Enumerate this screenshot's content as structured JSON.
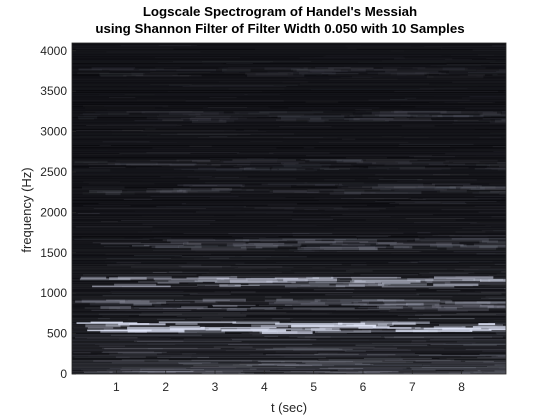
{
  "chart_data": {
    "type": "heatmap",
    "title": [
      "Logscale Spectrogram of Handel's Messiah",
      "using Shannon Filter of Filter Width 0.050 with 10 Samples"
    ],
    "xlabel": "t (sec)",
    "ylabel": "frequency (Hz)",
    "xlim": [
      0.1,
      8.9
    ],
    "ylim": [
      0,
      4096
    ],
    "xticks": [
      1,
      2,
      3,
      4,
      5,
      6,
      7,
      8
    ],
    "yticks": [
      0,
      500,
      1000,
      1500,
      2000,
      2500,
      3000,
      3500,
      4000
    ],
    "colormap": "bone",
    "background_color": "#0b0b0f",
    "bright_bands_hz": [
      {
        "frequency": 590,
        "intensity": 0.85
      },
      {
        "frequency": 1150,
        "intensity": 0.6
      },
      {
        "frequency": 870,
        "intensity": 0.35
      },
      {
        "frequency": 1620,
        "intensity": 0.25
      },
      {
        "frequency": 2300,
        "intensity": 0.15
      },
      {
        "frequency": 2600,
        "intensity": 0.12
      },
      {
        "frequency": 3200,
        "intensity": 0.12
      },
      {
        "frequency": 3750,
        "intensity": 0.1
      }
    ],
    "grid": false,
    "legend": "none"
  }
}
